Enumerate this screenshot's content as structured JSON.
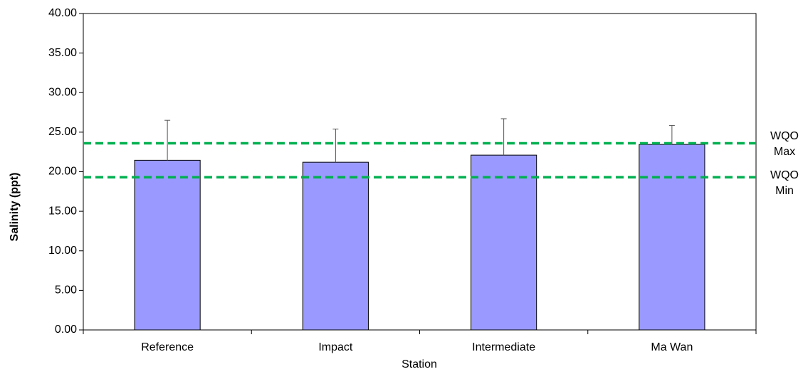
{
  "chart_data": {
    "type": "bar",
    "title": "",
    "xlabel": "Station",
    "ylabel": "Salinity (ppt)",
    "categories": [
      "Reference",
      "Impact",
      "Intermediate",
      "Ma Wan"
    ],
    "values": [
      21.45,
      21.2,
      22.1,
      23.45
    ],
    "error_bars_upper": [
      5.05,
      4.2,
      4.6,
      2.4
    ],
    "ylim": [
      0,
      40
    ],
    "yticks": [
      0,
      5,
      10,
      15,
      20,
      25,
      30,
      35,
      40
    ],
    "ytick_labels": [
      "0.00",
      "5.00",
      "10.00",
      "15.00",
      "20.00",
      "25.00",
      "30.00",
      "35.00",
      "40.00"
    ],
    "grid": false,
    "legend": "none",
    "bar_color": "#9999ff",
    "reference_lines": [
      {
        "label_line1": "WQO",
        "label_line2": "Max",
        "value": 23.6,
        "color": "#00b050"
      },
      {
        "label_line1": "WQO",
        "label_line2": "Min",
        "value": 19.3,
        "color": "#00b050"
      }
    ]
  }
}
